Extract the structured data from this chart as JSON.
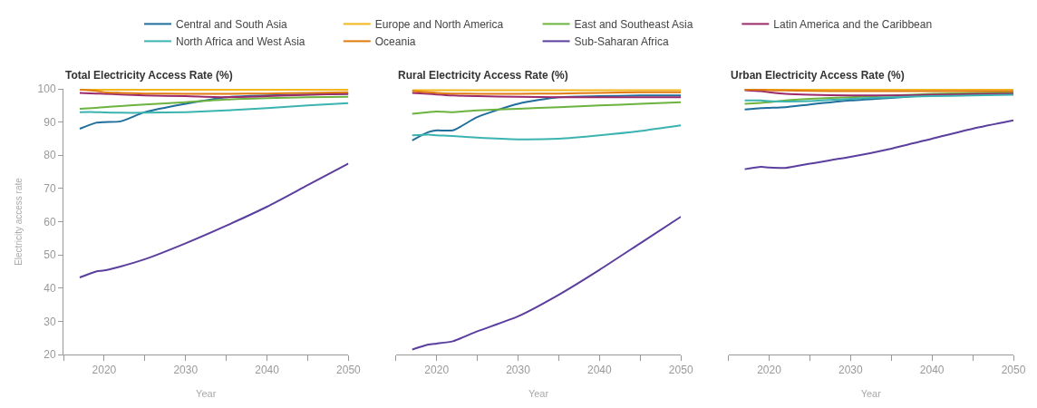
{
  "chart_data": [
    {
      "type": "line",
      "title": "Total Electricity Access Rate (%)",
      "xlabel": "Year",
      "ylabel": "Electricity access rate",
      "legend": "top",
      "line_style": "solid",
      "marker": "none",
      "x": [
        2017,
        2019,
        2020,
        2022,
        2025,
        2030,
        2035,
        2040,
        2045,
        2050
      ],
      "xlim": [
        2015,
        2050
      ],
      "xticks": [
        {
          "value": 2015,
          "label": null
        },
        2020,
        {
          "value": 2025,
          "label": null
        },
        2030,
        {
          "value": 2035,
          "label": null
        },
        2040,
        {
          "value": 2045,
          "label": null
        },
        2050
      ],
      "ylim": [
        20,
        100
      ],
      "yticks": [
        20,
        30,
        40,
        50,
        60,
        70,
        80,
        90,
        100
      ],
      "series": [
        {
          "name": "Central and South Asia",
          "color": "#1f6e9c",
          "values": [
            88,
            89.8,
            90,
            90.2,
            93,
            95.5,
            97.5,
            98,
            98.3,
            98.5
          ]
        },
        {
          "name": "Europe and North America",
          "color": "#f2b61a",
          "values": [
            99.8,
            99.7,
            99.7,
            99.7,
            99.7,
            99.7,
            99.7,
            99.7,
            99.7,
            99.7
          ]
        },
        {
          "name": "East and Southeast Asia",
          "color": "#6cb33f",
          "values": [
            94,
            94.3,
            94.5,
            94.8,
            95.3,
            96,
            96.8,
            97.2,
            97.5,
            97.6
          ]
        },
        {
          "name": "Latin America and the Caribbean",
          "color": "#9b2a6b",
          "values": [
            98.8,
            98.6,
            98.5,
            98.3,
            98,
            97.8,
            97.5,
            97.8,
            98.2,
            98.5
          ]
        },
        {
          "name": "North Africa and West Asia",
          "color": "#3bb3b0",
          "values": [
            93,
            93,
            92.9,
            92.8,
            92.8,
            93,
            93.5,
            94.2,
            95,
            95.7
          ]
        },
        {
          "name": "Oceania",
          "color": "#e07b10",
          "values": [
            99.8,
            99.4,
            99,
            98.8,
            98.6,
            98.5,
            98.5,
            98.6,
            98.8,
            99
          ]
        },
        {
          "name": "Sub-Saharan Africa",
          "color": "#5b3f9e",
          "values": [
            43.2,
            45,
            45.3,
            46.5,
            48.7,
            53.5,
            58.8,
            64.5,
            71,
            77.5
          ]
        }
      ]
    },
    {
      "type": "line",
      "title": "Rural Electricity Access Rate (%)",
      "xlabel": "Year",
      "line_style": "solid",
      "marker": "none",
      "tick_labels": "x",
      "x": [
        2017,
        2019,
        2020,
        2022,
        2025,
        2030,
        2035,
        2040,
        2045,
        2050
      ],
      "xlim": [
        2015,
        2050
      ],
      "xticks": [
        {
          "value": 2015,
          "label": null
        },
        2020,
        {
          "value": 2025,
          "label": null
        },
        2030,
        {
          "value": 2035,
          "label": null
        },
        2040,
        {
          "value": 2045,
          "label": null
        },
        2050
      ],
      "ylim": [
        20,
        100
      ],
      "series": [
        {
          "color": "#1f6e9c",
          "values": [
            84.5,
            87,
            87.5,
            87.5,
            91.5,
            95.5,
            97.5,
            97.8,
            98,
            98
          ]
        },
        {
          "color": "#f2b61a",
          "values": [
            99.6,
            99.6,
            99.6,
            99.6,
            99.6,
            99.6,
            99.6,
            99.6,
            99.6,
            99.6
          ]
        },
        {
          "color": "#6cb33f",
          "values": [
            92.5,
            93,
            93.2,
            93,
            93.5,
            94,
            94.5,
            95,
            95.5,
            96
          ]
        },
        {
          "color": "#9b2a6b",
          "values": [
            98.8,
            98.5,
            98.3,
            98,
            97.8,
            97.6,
            97.5,
            97.5,
            97.5,
            97.5
          ]
        },
        {
          "color": "#3bb3b0",
          "values": [
            86,
            86.2,
            86,
            85.8,
            85.3,
            84.8,
            85,
            86,
            87.3,
            89
          ]
        },
        {
          "color": "#e07b10",
          "values": [
            99.3,
            99,
            98.8,
            98.6,
            98.5,
            98.5,
            98.6,
            98.8,
            99,
            99
          ]
        },
        {
          "color": "#5b3f9e",
          "values": [
            21.5,
            23,
            23.3,
            24,
            27,
            31.5,
            38,
            45.5,
            53.5,
            61.5
          ]
        }
      ]
    },
    {
      "type": "line",
      "title": "Urban Electricity Access Rate (%)",
      "xlabel": "Year",
      "line_style": "solid",
      "marker": "none",
      "tick_labels": "x",
      "x": [
        2017,
        2019,
        2020,
        2022,
        2025,
        2030,
        2035,
        2040,
        2045,
        2050
      ],
      "xlim": [
        2015,
        2050
      ],
      "xticks": [
        {
          "value": 2015,
          "label": null
        },
        2020,
        {
          "value": 2025,
          "label": null
        },
        2030,
        {
          "value": 2035,
          "label": null
        },
        2040,
        {
          "value": 2045,
          "label": null
        },
        2050
      ],
      "ylim": [
        20,
        100
      ],
      "series": [
        {
          "color": "#1f6e9c",
          "values": [
            93.8,
            94.2,
            94.3,
            94.5,
            95.3,
            96.5,
            97.3,
            98,
            98.3,
            98.5
          ]
        },
        {
          "color": "#f2b61a",
          "values": [
            99.8,
            99.8,
            99.8,
            99.8,
            99.8,
            99.8,
            99.8,
            99.8,
            99.8,
            99.8
          ]
        },
        {
          "color": "#6cb33f",
          "values": [
            95.5,
            95.8,
            96,
            96.5,
            97,
            97.5,
            98,
            98.5,
            98.8,
            99
          ]
        },
        {
          "color": "#9b2a6b",
          "values": [
            99.6,
            99.3,
            99,
            98.5,
            98.2,
            98,
            98,
            98.2,
            98.4,
            98.6
          ]
        },
        {
          "color": "#3bb3b0",
          "values": [
            96.5,
            96.5,
            96.3,
            96.2,
            96.3,
            97,
            97.5,
            97.8,
            98,
            98.2
          ]
        },
        {
          "color": "#e07b10",
          "values": [
            99.8,
            99.7,
            99.6,
            99.5,
            99.4,
            99.3,
            99.3,
            99.3,
            99.3,
            99.3
          ]
        },
        {
          "color": "#5b3f9e",
          "values": [
            75.8,
            76.5,
            76.3,
            76.2,
            77.5,
            79.5,
            82,
            85,
            88,
            90.5
          ]
        }
      ]
    }
  ]
}
